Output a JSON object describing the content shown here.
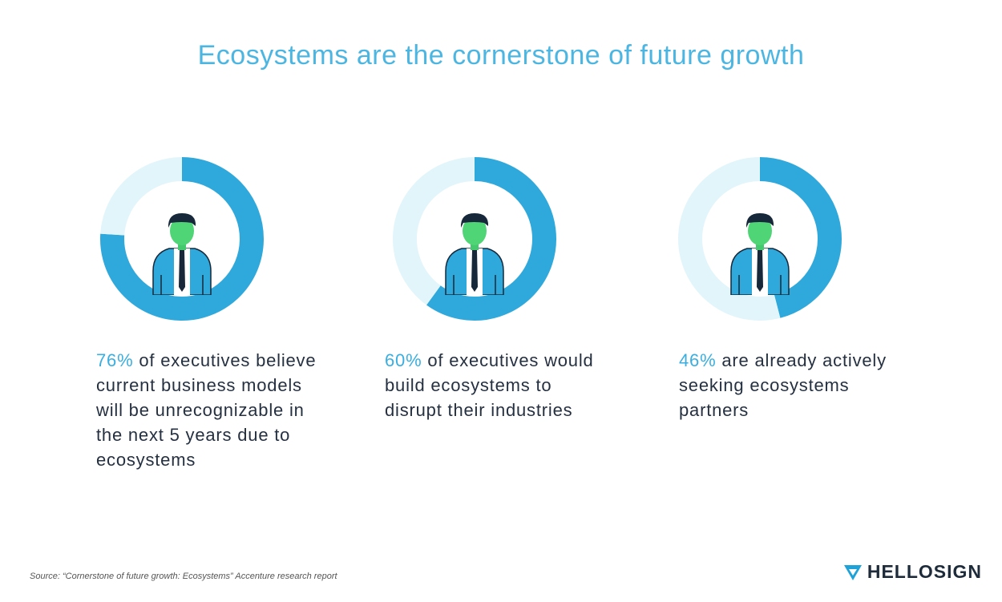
{
  "title": "Ecosystems are the cornerstone of future growth",
  "source": "Source: “Cornerstone of future growth: Ecosystems” Accenture research report",
  "brand": "HELLOSIGN",
  "chart_data": [
    {
      "type": "donut",
      "values": [
        76,
        24
      ],
      "value_labels": [
        "76%",
        null
      ],
      "colors": [
        "#2fa8dc",
        "#e1f5fa"
      ],
      "caption": "of executives believe current business models will be unrecognizable in the next 5 years due to ecosystems"
    },
    {
      "type": "donut",
      "values": [
        60,
        40
      ],
      "value_labels": [
        "60%",
        null
      ],
      "colors": [
        "#2fa8dc",
        "#e1f5fa"
      ],
      "caption": "of executives would build ecosystems to disrupt their industries"
    },
    {
      "type": "donut",
      "values": [
        46,
        54
      ],
      "value_labels": [
        "46%",
        null
      ],
      "colors": [
        "#2fa8dc",
        "#e1f5fa"
      ],
      "caption": "are already actively seeking ecosystems partners"
    }
  ]
}
